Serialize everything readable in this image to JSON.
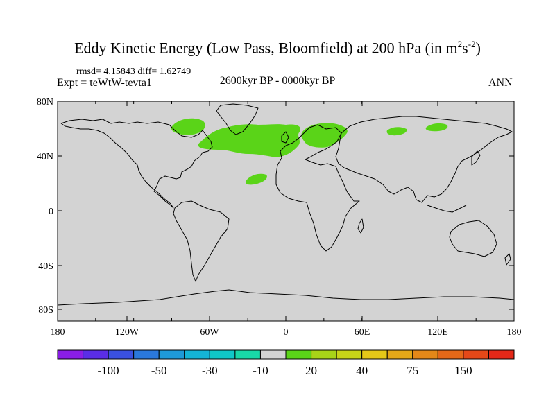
{
  "title": {
    "main": "Eddy Kinetic Energy (Low Pass, Bloomfield) at 200 hPa (in m",
    "sup1": "2",
    "mid": "s",
    "sup2": "-2",
    "end": ")"
  },
  "subtitle": {
    "stats": "rmsd= 4.15843 diff= 1.62749",
    "expt": "Expt = teWtW-tevta1",
    "period": "2600kyr BP - 0000kyr BP",
    "season": "ANN"
  },
  "map": {
    "background_color": "#d3d3d3",
    "lat_ticks": [
      "80N",
      "40N",
      "0",
      "40S",
      "80S"
    ],
    "lon_ticks": [
      "180",
      "120W",
      "60W",
      "0",
      "60E",
      "120E",
      "180"
    ]
  },
  "colorbar": {
    "colors": [
      "#8a1de6",
      "#5a2de6",
      "#3a50e0",
      "#2a78dc",
      "#1e9ad8",
      "#14b4d6",
      "#10c8c8",
      "#18d8a8",
      "#d3d3d3",
      "#5ad418",
      "#a8d418",
      "#c8d418",
      "#e4c818",
      "#e4a818",
      "#e48818",
      "#e46818",
      "#e44818",
      "#e42818"
    ],
    "labels": [
      "-100",
      "-50",
      "-30",
      "-10",
      "20",
      "40",
      "75",
      "150"
    ]
  }
}
